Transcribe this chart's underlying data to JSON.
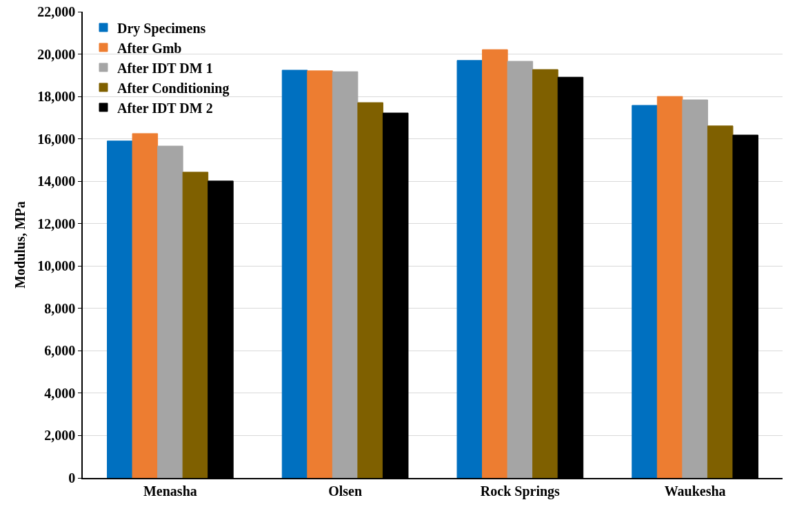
{
  "chart_data": {
    "type": "bar",
    "ylabel": "Modulus, MPa",
    "categories": [
      "Menasha",
      "Olsen",
      "Rock Springs",
      "Waukesha"
    ],
    "series": [
      {
        "name": "Dry Specimens",
        "color": "#0070c0",
        "values": [
          15900,
          19240,
          19700,
          17580
        ]
      },
      {
        "name": "After Gmb",
        "color": "#ed7d31",
        "values": [
          16250,
          19210,
          20210,
          18000
        ]
      },
      {
        "name": "After IDT DM 1",
        "color": "#a5a5a5",
        "values": [
          15660,
          19170,
          19660,
          17840
        ]
      },
      {
        "name": "After Conditioning",
        "color": "#7f6000",
        "values": [
          14430,
          17710,
          19270,
          16610
        ]
      },
      {
        "name": "After IDT DM 2",
        "color": "#000000",
        "values": [
          14010,
          17220,
          18910,
          16180
        ]
      }
    ],
    "ylim": [
      0,
      22000
    ],
    "yticks": [
      {
        "value": 0,
        "label": "0"
      },
      {
        "value": 2000,
        "label": "2,000"
      },
      {
        "value": 4000,
        "label": "4,000"
      },
      {
        "value": 6000,
        "label": "6,000"
      },
      {
        "value": 8000,
        "label": "8,000"
      },
      {
        "value": 10000,
        "label": "10,000"
      },
      {
        "value": 12000,
        "label": "12,000"
      },
      {
        "value": 14000,
        "label": "14,000"
      },
      {
        "value": 16000,
        "label": "16,000"
      },
      {
        "value": 18000,
        "label": "18,000"
      },
      {
        "value": 20000,
        "label": "20,000"
      },
      {
        "value": 22000,
        "label": "22,000"
      }
    ],
    "grid": "y",
    "legend": "top"
  }
}
